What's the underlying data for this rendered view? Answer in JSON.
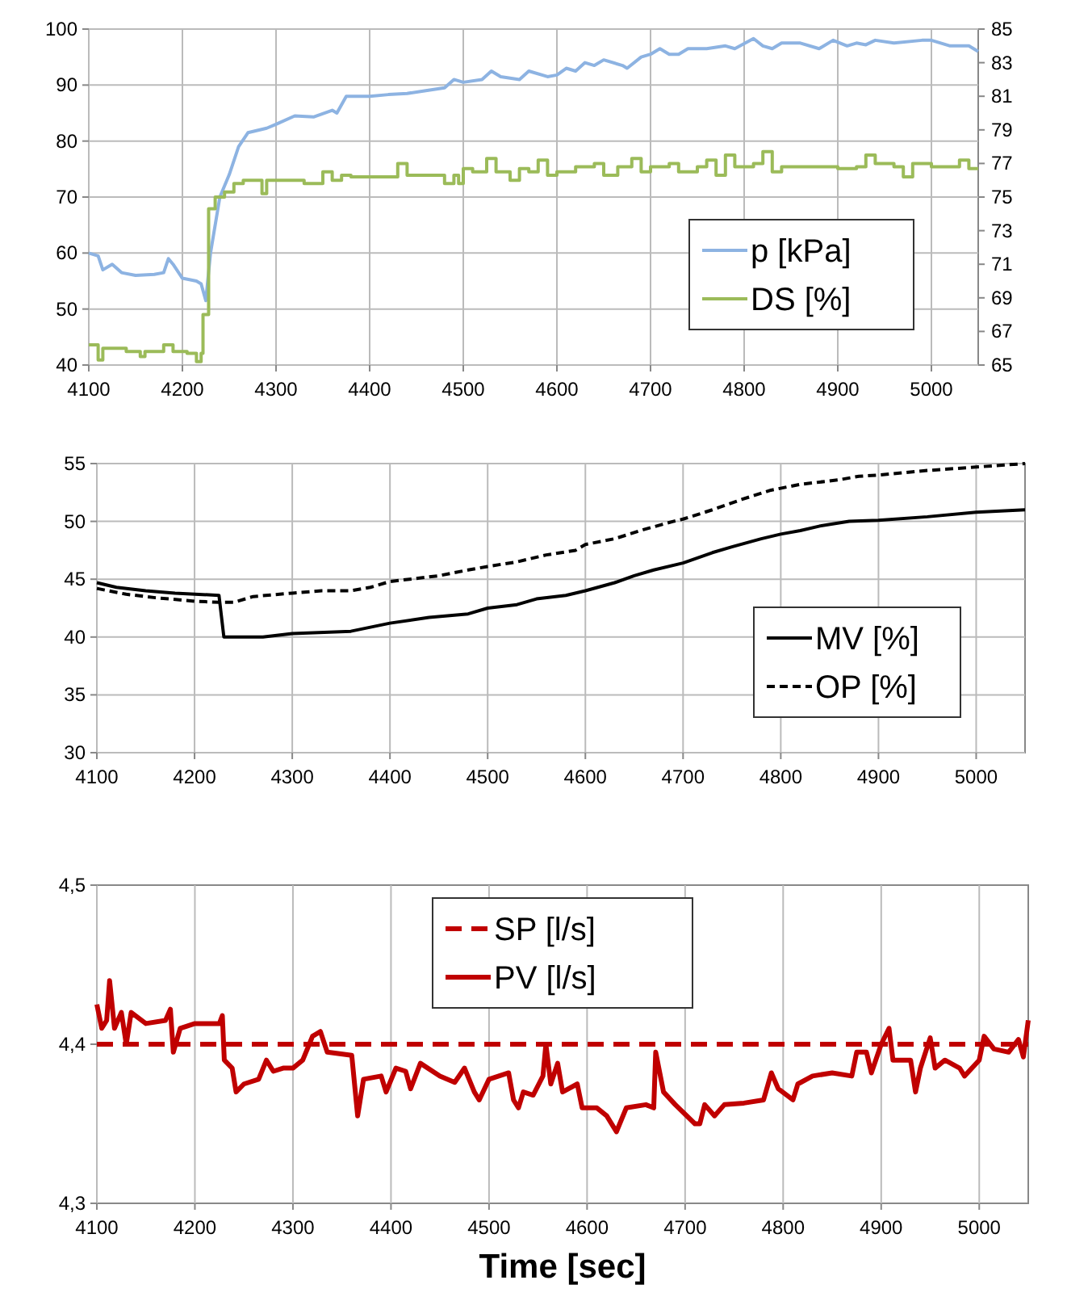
{
  "chart_data": [
    {
      "type": "line",
      "xlim": [
        4100,
        5050
      ],
      "xticks": [
        4100,
        4200,
        4300,
        4400,
        4500,
        4600,
        4700,
        4800,
        4900,
        5000
      ],
      "ylim": [
        40,
        100
      ],
      "yticks": [
        40,
        50,
        60,
        70,
        80,
        90,
        100
      ],
      "y2lim": [
        65,
        85
      ],
      "y2ticks": [
        65,
        67,
        69,
        71,
        73,
        75,
        77,
        79,
        81,
        83,
        85
      ],
      "grid": true,
      "legend": "bottom right",
      "series": [
        {
          "name": "p [kPa]",
          "color": "#8db3e2",
          "x": [
            4100,
            4110,
            4115,
            4125,
            4135,
            4150,
            4170,
            4180,
            4185,
            4190,
            4200,
            4215,
            4220,
            4225,
            4230,
            4240,
            4250,
            4260,
            4270,
            4290,
            4300,
            4320,
            4340,
            4360,
            4365,
            4375,
            4400,
            4420,
            4440,
            4460,
            4480,
            4490,
            4500,
            4520,
            4530,
            4540,
            4560,
            4570,
            4590,
            4600,
            4610,
            4620,
            4630,
            4640,
            4650,
            4670,
            4675,
            4690,
            4700,
            4710,
            4720,
            4730,
            4740,
            4760,
            4780,
            4790,
            4810,
            4820,
            4830,
            4840,
            4860,
            4880,
            4895,
            4910,
            4920,
            4930,
            4940,
            4960,
            4990,
            5000,
            5010,
            5020,
            5040,
            5050
          ],
          "values": [
            60,
            59.5,
            57,
            58,
            56.5,
            56,
            56.2,
            56.5,
            59,
            58,
            55.5,
            55,
            54.5,
            51.5,
            60,
            70,
            74,
            79,
            81.5,
            82.3,
            83,
            84.5,
            84.3,
            85.5,
            85,
            88,
            88,
            88.3,
            88.5,
            89,
            89.5,
            91,
            90.5,
            91,
            92.5,
            91.5,
            91,
            92.5,
            91.5,
            91.8,
            93,
            92.5,
            94,
            93.5,
            94.5,
            93.5,
            93,
            95,
            95.5,
            96.5,
            95.5,
            95.5,
            96.5,
            96.5,
            97,
            96.5,
            98.3,
            97,
            96.5,
            97.5,
            97.5,
            96.5,
            98,
            97,
            97.5,
            97.2,
            98,
            97.5,
            98,
            98,
            97.5,
            97,
            97,
            96
          ]
        },
        {
          "name": "DS  [%]",
          "type": "step",
          "axis": "y2",
          "color": "#9bbb59",
          "x": [
            4100,
            4110,
            4115,
            4130,
            4140,
            4155,
            4160,
            4180,
            4190,
            4205,
            4215,
            4220,
            4222,
            4228,
            4235,
            4245,
            4255,
            4265,
            4285,
            4290,
            4310,
            4330,
            4350,
            4360,
            4370,
            4380,
            4400,
            4430,
            4440,
            4480,
            4490,
            4495,
            4500,
            4510,
            4525,
            4535,
            4550,
            4560,
            4570,
            4580,
            4590,
            4600,
            4620,
            4640,
            4650,
            4665,
            4680,
            4690,
            4700,
            4720,
            4730,
            4750,
            4760,
            4770,
            4780,
            4790,
            4810,
            4820,
            4830,
            4840,
            4880,
            4900,
            4920,
            4930,
            4940,
            4960,
            4970,
            4980,
            5000,
            5010,
            5030,
            5040,
            5050
          ],
          "values": [
            66.2,
            65.3,
            66,
            66,
            65.8,
            65.5,
            65.8,
            66.2,
            65.8,
            65.7,
            65.2,
            65.7,
            68,
            74.3,
            75,
            75.3,
            75.8,
            76,
            75.2,
            76,
            76,
            75.8,
            76.5,
            76,
            76.3,
            76.2,
            76.2,
            77,
            76.3,
            75.8,
            76.3,
            75.8,
            76.7,
            76.5,
            77.3,
            76.5,
            76,
            76.7,
            76.5,
            77.2,
            76.3,
            76.5,
            76.8,
            77,
            76.3,
            76.8,
            77.3,
            76.5,
            76.8,
            77,
            76.5,
            76.8,
            77.2,
            76.3,
            77.5,
            76.8,
            77,
            77.7,
            76.5,
            76.8,
            76.8,
            76.7,
            76.8,
            77.5,
            77,
            76.8,
            76.2,
            77,
            76.8,
            76.8,
            77.2,
            76.7,
            76.7
          ]
        }
      ]
    },
    {
      "type": "line",
      "xlim": [
        4100,
        5050
      ],
      "xticks": [
        4100,
        4200,
        4300,
        4400,
        4500,
        4600,
        4700,
        4800,
        4900,
        5000
      ],
      "ylim": [
        30,
        55
      ],
      "yticks": [
        30,
        35,
        40,
        45,
        50,
        55
      ],
      "grid": true,
      "legend": "bottom right",
      "series": [
        {
          "name": "MV [%]",
          "color": "#000000",
          "line_style": "solid",
          "x": [
            4100,
            4120,
            4150,
            4180,
            4225,
            4230,
            4270,
            4300,
            4360,
            4400,
            4440,
            4480,
            4500,
            4530,
            4550,
            4580,
            4600,
            4630,
            4650,
            4670,
            4700,
            4730,
            4750,
            4780,
            4800,
            4820,
            4840,
            4870,
            4900,
            4950,
            5000,
            5050
          ],
          "values": [
            44.7,
            44.3,
            44,
            43.8,
            43.6,
            40,
            40,
            40.3,
            40.5,
            41.2,
            41.7,
            42,
            42.5,
            42.8,
            43.3,
            43.6,
            44,
            44.7,
            45.3,
            45.8,
            46.4,
            47.3,
            47.8,
            48.5,
            48.9,
            49.2,
            49.6,
            50,
            50.1,
            50.4,
            50.8,
            51
          ]
        },
        {
          "name": "OP [%]",
          "color": "#000000",
          "line_style": "dashed",
          "x": [
            4100,
            4130,
            4160,
            4200,
            4225,
            4240,
            4260,
            4300,
            4330,
            4360,
            4380,
            4400,
            4450,
            4480,
            4500,
            4530,
            4560,
            4590,
            4600,
            4630,
            4660,
            4690,
            4700,
            4730,
            4760,
            4790,
            4820,
            4860,
            4880,
            4900,
            4950,
            5000,
            5050
          ],
          "values": [
            44.2,
            43.7,
            43.4,
            43.1,
            43,
            43,
            43.5,
            43.8,
            44,
            44,
            44.3,
            44.8,
            45.3,
            45.8,
            46.1,
            46.5,
            47.1,
            47.5,
            48,
            48.5,
            49.3,
            50,
            50.2,
            51,
            51.9,
            52.7,
            53.2,
            53.6,
            53.9,
            54,
            54.4,
            54.7,
            55
          ]
        }
      ]
    },
    {
      "type": "line",
      "xlabel": "Time [sec]",
      "xlim": [
        4100,
        5050
      ],
      "xticks": [
        4100,
        4200,
        4300,
        4400,
        4500,
        4600,
        4700,
        4800,
        4900,
        5000
      ],
      "ylim": [
        4.3,
        4.5
      ],
      "yticks": [
        {
          "value": 4.3,
          "label": "4,3"
        },
        {
          "value": 4.4,
          "label": "4,4"
        },
        {
          "value": 4.5,
          "label": "4,5"
        }
      ],
      "grid": "x",
      "legend": "top",
      "series": [
        {
          "name": "SP  [l/s]",
          "color": "#c00000",
          "line_style": "dashed",
          "x": [
            4100,
            5050
          ],
          "values": [
            4.4,
            4.4
          ]
        },
        {
          "name": "PV  [l/s]",
          "color": "#c00000",
          "line_style": "solid",
          "x": [
            4100,
            4105,
            4110,
            4113,
            4118,
            4125,
            4130,
            4135,
            4150,
            4170,
            4175,
            4178,
            4185,
            4200,
            4225,
            4228,
            4230,
            4238,
            4242,
            4250,
            4265,
            4273,
            4280,
            4290,
            4300,
            4310,
            4320,
            4328,
            4335,
            4360,
            4366,
            4372,
            4390,
            4395,
            4405,
            4415,
            4420,
            4430,
            4450,
            4465,
            4475,
            4485,
            4490,
            4500,
            4520,
            4525,
            4530,
            4535,
            4545,
            4555,
            4558,
            4563,
            4570,
            4575,
            4590,
            4595,
            4610,
            4620,
            4630,
            4640,
            4660,
            4668,
            4670,
            4678,
            4690,
            4710,
            4715,
            4720,
            4730,
            4740,
            4760,
            4780,
            4788,
            4795,
            4810,
            4815,
            4830,
            4850,
            4870,
            4875,
            4885,
            4890,
            4900,
            4908,
            4912,
            4930,
            4935,
            4940,
            4950,
            4955,
            4965,
            4980,
            4985,
            5000,
            5005,
            5015,
            5030,
            5040,
            5045,
            5050
          ],
          "values": [
            4.425,
            4.41,
            4.415,
            4.44,
            4.41,
            4.42,
            4.4,
            4.42,
            4.413,
            4.415,
            4.422,
            4.395,
            4.41,
            4.413,
            4.413,
            4.418,
            4.39,
            4.385,
            4.37,
            4.375,
            4.378,
            4.39,
            4.383,
            4.385,
            4.385,
            4.39,
            4.405,
            4.408,
            4.395,
            4.393,
            4.355,
            4.378,
            4.38,
            4.37,
            4.385,
            4.383,
            4.372,
            4.388,
            4.38,
            4.376,
            4.385,
            4.37,
            4.365,
            4.378,
            4.382,
            4.365,
            4.36,
            4.37,
            4.368,
            4.38,
            4.4,
            4.375,
            4.388,
            4.37,
            4.375,
            4.36,
            4.36,
            4.355,
            4.345,
            4.36,
            4.362,
            4.36,
            4.395,
            4.37,
            4.362,
            4.35,
            4.35,
            4.362,
            4.355,
            4.362,
            4.363,
            4.365,
            4.382,
            4.372,
            4.365,
            4.375,
            4.38,
            4.382,
            4.38,
            4.395,
            4.395,
            4.382,
            4.4,
            4.41,
            4.39,
            4.39,
            4.37,
            4.385,
            4.404,
            4.385,
            4.39,
            4.385,
            4.38,
            4.39,
            4.405,
            4.397,
            4.395,
            4.403,
            4.392,
            4.415
          ]
        }
      ]
    }
  ]
}
